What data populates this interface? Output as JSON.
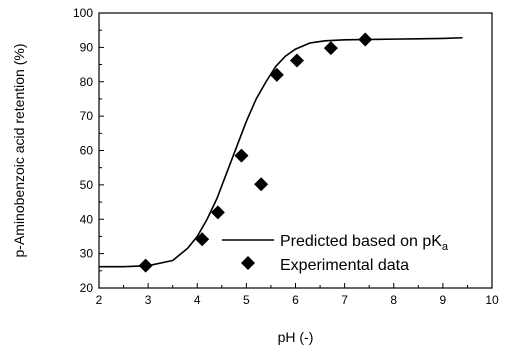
{
  "chart_data": {
    "type": "line",
    "title": "",
    "xlabel": "pH (-)",
    "ylabel": "p-Aminobenzoic acid retention (%)",
    "xlim": [
      2,
      10
    ],
    "ylim": [
      20,
      100
    ],
    "xticks": [
      2,
      3,
      4,
      5,
      6,
      7,
      8,
      9,
      10
    ],
    "yticks": [
      20,
      30,
      40,
      50,
      60,
      70,
      80,
      90,
      100
    ],
    "grid": false,
    "legend_position": "lower-right",
    "legend": {
      "predicted_label": "Predicted based on pK",
      "predicted_sub": "a",
      "experimental_label": "Experimental data"
    },
    "series": [
      {
        "name": "Predicted based on pKa",
        "kind": "line",
        "color": "#000000",
        "x": [
          2.0,
          2.5,
          3.0,
          3.5,
          3.8,
          4.0,
          4.2,
          4.4,
          4.6,
          4.8,
          5.0,
          5.2,
          5.4,
          5.6,
          5.8,
          6.0,
          6.3,
          6.6,
          7.0,
          7.5,
          8.0,
          8.5,
          9.0,
          9.4
        ],
        "y": [
          26.2,
          26.2,
          26.5,
          28.0,
          31.5,
          35.0,
          40.0,
          46.0,
          53.5,
          61.0,
          68.5,
          75.0,
          80.0,
          84.5,
          87.5,
          89.5,
          91.3,
          91.9,
          92.2,
          92.3,
          92.4,
          92.5,
          92.6,
          92.8
        ]
      },
      {
        "name": "Experimental data",
        "kind": "scatter",
        "marker": "diamond",
        "color": "#000000",
        "x": [
          2.95,
          4.1,
          4.42,
          4.9,
          5.3,
          5.62,
          6.03,
          6.72,
          7.42
        ],
        "y": [
          26.5,
          34.2,
          42.0,
          58.5,
          50.2,
          82.0,
          86.2,
          89.8,
          92.3
        ]
      }
    ]
  }
}
